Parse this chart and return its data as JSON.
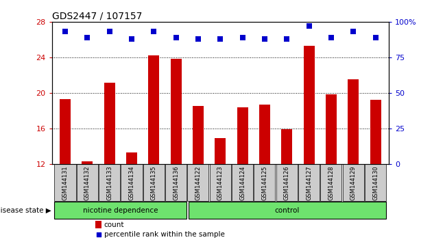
{
  "title": "GDS2447 / 107157",
  "samples": [
    "GSM144131",
    "GSM144132",
    "GSM144133",
    "GSM144134",
    "GSM144135",
    "GSM144136",
    "GSM144122",
    "GSM144123",
    "GSM144124",
    "GSM144125",
    "GSM144126",
    "GSM144127",
    "GSM144128",
    "GSM144129",
    "GSM144130"
  ],
  "counts": [
    19.3,
    12.3,
    21.1,
    13.3,
    24.2,
    23.8,
    18.5,
    14.9,
    18.4,
    18.7,
    15.9,
    25.3,
    19.8,
    21.5,
    19.2
  ],
  "percentiles": [
    93,
    89,
    93,
    88,
    93,
    89,
    88,
    88,
    89,
    88,
    88,
    97,
    89,
    93,
    89
  ],
  "bar_color": "#cc0000",
  "dot_color": "#0000cc",
  "ylim_left": [
    12,
    28
  ],
  "ylim_right": [
    0,
    100
  ],
  "yticks_left": [
    12,
    16,
    20,
    24,
    28
  ],
  "yticks_right": [
    0,
    25,
    50,
    75,
    100
  ],
  "grid_values": [
    16,
    20,
    24
  ],
  "group1_label": "nicotine dependence",
  "group2_label": "control",
  "group_color": "#6EE26E",
  "disease_state_label": "disease state",
  "legend_count": "count",
  "legend_pct": "percentile rank within the sample",
  "tick_label_bg": "#cccccc",
  "bar_width": 0.5,
  "dot_size": 30,
  "n_group1": 6,
  "n_group2": 9
}
